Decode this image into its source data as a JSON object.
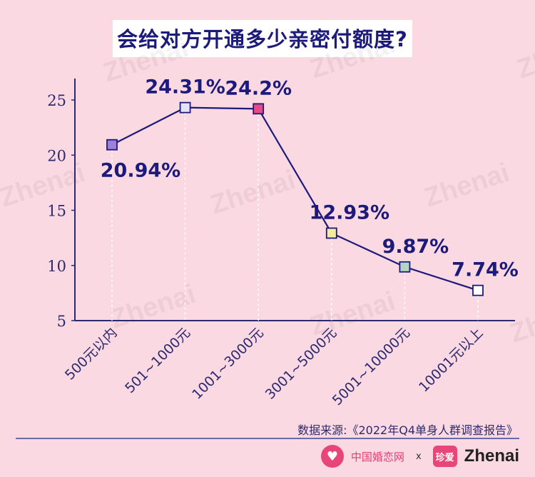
{
  "title": "会给对方开通多少亲密付额度?",
  "watermark": "Zhenai",
  "source": "数据来源:《2022年Q4单身人群调查报告》",
  "footer": {
    "brand_cn": "中国婚恋网",
    "separator": "x",
    "brand_icon_text": "珍爱",
    "brand_en": "Zhenai"
  },
  "colors": {
    "background": "#fbd9e3",
    "line": "#1c1a7a",
    "label": "#1c1a7a",
    "axis": "#2c2a6e"
  },
  "chart_data": {
    "type": "line",
    "categories": [
      "500元以内",
      "501~1000元",
      "1001~3000元",
      "3001~5000元",
      "5001~10000元",
      "10001元以上"
    ],
    "values": [
      20.94,
      24.31,
      24.2,
      12.93,
      9.87,
      7.74
    ],
    "data_labels": [
      "20.94%",
      "24.31%",
      "24.2%",
      "12.93%",
      "9.87%",
      "7.74%"
    ],
    "marker_colors": [
      "#a07fd8",
      "#e3e3fb",
      "#e84a86",
      "#f1ec9e",
      "#b5d5c4",
      "#ffffff"
    ],
    "ylim": [
      5,
      25
    ],
    "yticks": [
      5,
      10,
      15,
      20,
      25
    ],
    "title": "会给对方开通多少亲密付额度?",
    "xlabel": "",
    "ylabel": "",
    "grid": false,
    "legend": "none"
  }
}
